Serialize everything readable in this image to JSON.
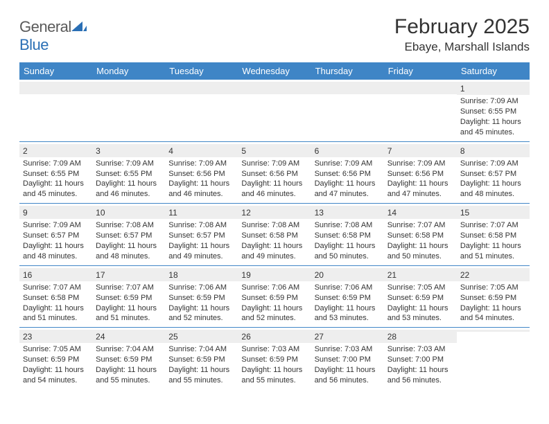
{
  "logo": {
    "word1": "General",
    "word2": "Blue"
  },
  "title": "February 2025",
  "location": "Ebaye, Marshall Islands",
  "colors": {
    "header_bg": "#3f85c6",
    "header_text": "#ffffff",
    "band_bg": "#eeeeee",
    "border": "#3f85c6",
    "text": "#333333",
    "logo_gray": "#5a5a5a",
    "logo_blue": "#2a6fb5",
    "page_bg": "#ffffff"
  },
  "day_headers": [
    "Sunday",
    "Monday",
    "Tuesday",
    "Wednesday",
    "Thursday",
    "Friday",
    "Saturday"
  ],
  "weeks": [
    [
      {
        "day": "",
        "lines": []
      },
      {
        "day": "",
        "lines": []
      },
      {
        "day": "",
        "lines": []
      },
      {
        "day": "",
        "lines": []
      },
      {
        "day": "",
        "lines": []
      },
      {
        "day": "",
        "lines": []
      },
      {
        "day": "1",
        "lines": [
          "Sunrise: 7:09 AM",
          "Sunset: 6:55 PM",
          "Daylight: 11 hours and 45 minutes."
        ]
      }
    ],
    [
      {
        "day": "2",
        "lines": [
          "Sunrise: 7:09 AM",
          "Sunset: 6:55 PM",
          "Daylight: 11 hours and 45 minutes."
        ]
      },
      {
        "day": "3",
        "lines": [
          "Sunrise: 7:09 AM",
          "Sunset: 6:55 PM",
          "Daylight: 11 hours and 46 minutes."
        ]
      },
      {
        "day": "4",
        "lines": [
          "Sunrise: 7:09 AM",
          "Sunset: 6:56 PM",
          "Daylight: 11 hours and 46 minutes."
        ]
      },
      {
        "day": "5",
        "lines": [
          "Sunrise: 7:09 AM",
          "Sunset: 6:56 PM",
          "Daylight: 11 hours and 46 minutes."
        ]
      },
      {
        "day": "6",
        "lines": [
          "Sunrise: 7:09 AM",
          "Sunset: 6:56 PM",
          "Daylight: 11 hours and 47 minutes."
        ]
      },
      {
        "day": "7",
        "lines": [
          "Sunrise: 7:09 AM",
          "Sunset: 6:56 PM",
          "Daylight: 11 hours and 47 minutes."
        ]
      },
      {
        "day": "8",
        "lines": [
          "Sunrise: 7:09 AM",
          "Sunset: 6:57 PM",
          "Daylight: 11 hours and 48 minutes."
        ]
      }
    ],
    [
      {
        "day": "9",
        "lines": [
          "Sunrise: 7:09 AM",
          "Sunset: 6:57 PM",
          "Daylight: 11 hours and 48 minutes."
        ]
      },
      {
        "day": "10",
        "lines": [
          "Sunrise: 7:08 AM",
          "Sunset: 6:57 PM",
          "Daylight: 11 hours and 48 minutes."
        ]
      },
      {
        "day": "11",
        "lines": [
          "Sunrise: 7:08 AM",
          "Sunset: 6:57 PM",
          "Daylight: 11 hours and 49 minutes."
        ]
      },
      {
        "day": "12",
        "lines": [
          "Sunrise: 7:08 AM",
          "Sunset: 6:58 PM",
          "Daylight: 11 hours and 49 minutes."
        ]
      },
      {
        "day": "13",
        "lines": [
          "Sunrise: 7:08 AM",
          "Sunset: 6:58 PM",
          "Daylight: 11 hours and 50 minutes."
        ]
      },
      {
        "day": "14",
        "lines": [
          "Sunrise: 7:07 AM",
          "Sunset: 6:58 PM",
          "Daylight: 11 hours and 50 minutes."
        ]
      },
      {
        "day": "15",
        "lines": [
          "Sunrise: 7:07 AM",
          "Sunset: 6:58 PM",
          "Daylight: 11 hours and 51 minutes."
        ]
      }
    ],
    [
      {
        "day": "16",
        "lines": [
          "Sunrise: 7:07 AM",
          "Sunset: 6:58 PM",
          "Daylight: 11 hours and 51 minutes."
        ]
      },
      {
        "day": "17",
        "lines": [
          "Sunrise: 7:07 AM",
          "Sunset: 6:59 PM",
          "Daylight: 11 hours and 51 minutes."
        ]
      },
      {
        "day": "18",
        "lines": [
          "Sunrise: 7:06 AM",
          "Sunset: 6:59 PM",
          "Daylight: 11 hours and 52 minutes."
        ]
      },
      {
        "day": "19",
        "lines": [
          "Sunrise: 7:06 AM",
          "Sunset: 6:59 PM",
          "Daylight: 11 hours and 52 minutes."
        ]
      },
      {
        "day": "20",
        "lines": [
          "Sunrise: 7:06 AM",
          "Sunset: 6:59 PM",
          "Daylight: 11 hours and 53 minutes."
        ]
      },
      {
        "day": "21",
        "lines": [
          "Sunrise: 7:05 AM",
          "Sunset: 6:59 PM",
          "Daylight: 11 hours and 53 minutes."
        ]
      },
      {
        "day": "22",
        "lines": [
          "Sunrise: 7:05 AM",
          "Sunset: 6:59 PM",
          "Daylight: 11 hours and 54 minutes."
        ]
      }
    ],
    [
      {
        "day": "23",
        "lines": [
          "Sunrise: 7:05 AM",
          "Sunset: 6:59 PM",
          "Daylight: 11 hours and 54 minutes."
        ]
      },
      {
        "day": "24",
        "lines": [
          "Sunrise: 7:04 AM",
          "Sunset: 6:59 PM",
          "Daylight: 11 hours and 55 minutes."
        ]
      },
      {
        "day": "25",
        "lines": [
          "Sunrise: 7:04 AM",
          "Sunset: 6:59 PM",
          "Daylight: 11 hours and 55 minutes."
        ]
      },
      {
        "day": "26",
        "lines": [
          "Sunrise: 7:03 AM",
          "Sunset: 6:59 PM",
          "Daylight: 11 hours and 55 minutes."
        ]
      },
      {
        "day": "27",
        "lines": [
          "Sunrise: 7:03 AM",
          "Sunset: 7:00 PM",
          "Daylight: 11 hours and 56 minutes."
        ]
      },
      {
        "day": "28",
        "lines": [
          "Sunrise: 7:03 AM",
          "Sunset: 7:00 PM",
          "Daylight: 11 hours and 56 minutes."
        ]
      },
      {
        "day": "",
        "lines": []
      }
    ]
  ]
}
